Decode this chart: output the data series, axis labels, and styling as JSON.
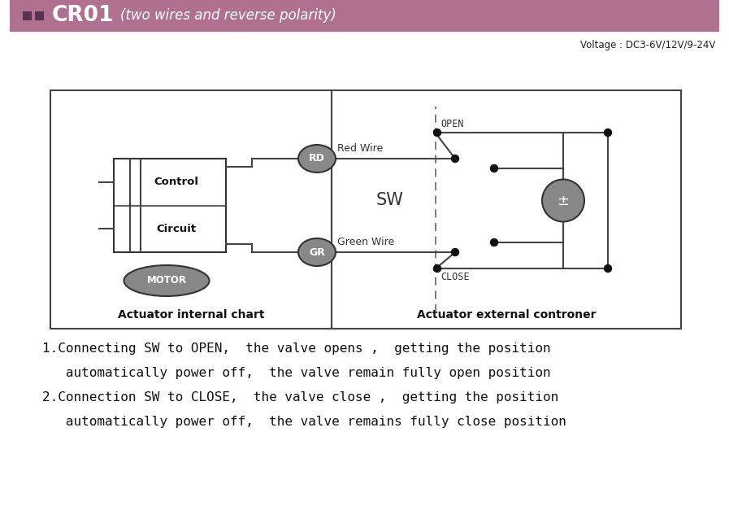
{
  "bg_color": "#ffffff",
  "header_color": "#b07090",
  "header_text": "CR01",
  "header_subtext": "(two wires and reverse polarity)",
  "voltage_text": "Voltage : DC3-6V/12V/9-24V",
  "line1": "1.Connecting SW to OPEN,  the valve opens ,  getting the position",
  "line2": "   automatically power off,  the valve remain fully open position",
  "line3": "2.Connection SW to CLOSE,  the valve close ,  getting the position",
  "line4": "   automatically power off,  the valve remains fully close position",
  "actuator_internal": "Actuator internal chart",
  "actuator_external": "Actuator external controner",
  "gray_color": "#888888",
  "dark_color": "#333333",
  "line_color": "#444444"
}
